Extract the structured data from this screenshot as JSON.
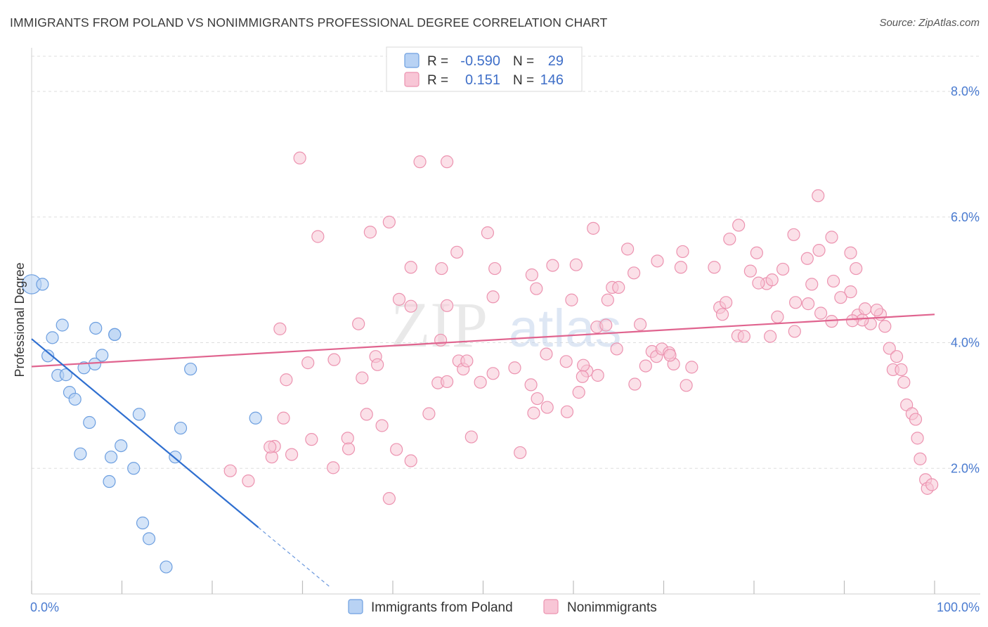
{
  "title": "IMMIGRANTS FROM POLAND VS NONIMMIGRANTS PROFESSIONAL DEGREE CORRELATION CHART",
  "source": "Source: ZipAtlas.com",
  "watermark": {
    "zip": "ZIP",
    "atlas": "atlas"
  },
  "colors": {
    "blue_fill": "#b8d2f4",
    "blue_stroke": "#6d9fe0",
    "blue_line": "#2f6fd0",
    "pink_fill": "#f8c6d6",
    "pink_stroke": "#ec93b0",
    "pink_line": "#e0648f",
    "grid": "#dddddd",
    "axis_text": "#4a7bd0"
  },
  "legend": {
    "rows": [
      {
        "r_label": "R =",
        "r_value": "-0.590",
        "n_label": "N =",
        "n_value": "29"
      },
      {
        "r_label": "R =",
        "r_value": "0.151",
        "n_label": "N =",
        "n_value": "146"
      }
    ]
  },
  "bottom_legend": [
    "Immigrants from Poland",
    "Nonimmigrants"
  ],
  "chart_data": {
    "type": "scatter",
    "title": "IMMIGRANTS FROM POLAND VS NONIMMIGRANTS PROFESSIONAL DEGREE CORRELATION CHART",
    "xlabel": "",
    "ylabel": "Professional Degree",
    "xlim": [
      0,
      100
    ],
    "ylim": [
      0,
      8.0
    ],
    "x_tick_labels": [
      "0.0%",
      "100.0%"
    ],
    "y_ticks": [
      2.0,
      4.0,
      6.0,
      8.0
    ],
    "y_tick_labels": [
      "2.0%",
      "4.0%",
      "6.0%",
      "8.0%"
    ],
    "grid": true,
    "legend_position": "top-center",
    "series": [
      {
        "name": "Immigrants from Poland",
        "r": -0.59,
        "n": 29,
        "trend": {
          "x0": 0,
          "y0": 4.06,
          "x1": 25.1,
          "y1": 1.06,
          "dash_to_x": 33.0
        },
        "points": [
          [
            0.0,
            4.93,
            1.6
          ],
          [
            1.2,
            4.93,
            1.0
          ],
          [
            2.3,
            4.08,
            1.0
          ],
          [
            1.8,
            3.79,
            1.0
          ],
          [
            3.4,
            4.28,
            1.0
          ],
          [
            2.9,
            3.48,
            1.0
          ],
          [
            3.8,
            3.49,
            1.0
          ],
          [
            4.2,
            3.21,
            1.0
          ],
          [
            4.8,
            3.1,
            1.0
          ],
          [
            5.8,
            3.6,
            1.0
          ],
          [
            7.1,
            4.23,
            1.0
          ],
          [
            7.8,
            3.8,
            1.0
          ],
          [
            9.2,
            4.13,
            1.0
          ],
          [
            7.0,
            3.66,
            1.0
          ],
          [
            6.4,
            2.73,
            1.0
          ],
          [
            5.4,
            2.23,
            1.0
          ],
          [
            8.6,
            1.79,
            1.0
          ],
          [
            8.8,
            2.18,
            1.0
          ],
          [
            9.9,
            2.36,
            1.0
          ],
          [
            11.3,
            2.0,
            1.0
          ],
          [
            11.9,
            2.86,
            1.0
          ],
          [
            12.3,
            1.13,
            1.0
          ],
          [
            13.0,
            0.88,
            1.0
          ],
          [
            14.9,
            0.43,
            1.0
          ],
          [
            15.9,
            2.18,
            1.0
          ],
          [
            16.5,
            2.64,
            1.0
          ],
          [
            17.6,
            3.58,
            1.0
          ],
          [
            24.8,
            2.8,
            1.0
          ],
          [
            9.2,
            4.13,
            1.0
          ]
        ]
      },
      {
        "name": "Nonimmigrants",
        "r": 0.151,
        "n": 146,
        "trend": {
          "x0": 0,
          "y0": 3.62,
          "x1": 100,
          "y1": 4.45
        },
        "points": [
          [
            29.7,
            6.94
          ],
          [
            43.0,
            6.88
          ],
          [
            46.0,
            6.88
          ],
          [
            31.7,
            5.69
          ],
          [
            37.5,
            5.76
          ],
          [
            39.6,
            5.92
          ],
          [
            42.0,
            5.2
          ],
          [
            45.4,
            5.18
          ],
          [
            47.1,
            5.44
          ],
          [
            50.5,
            5.75
          ],
          [
            51.3,
            5.18
          ],
          [
            55.4,
            5.08
          ],
          [
            57.7,
            5.23
          ],
          [
            60.3,
            5.24
          ],
          [
            62.2,
            5.82
          ],
          [
            66.0,
            5.49
          ],
          [
            66.7,
            5.11
          ],
          [
            69.3,
            5.3
          ],
          [
            72.1,
            5.45
          ],
          [
            71.9,
            5.2
          ],
          [
            75.6,
            5.2
          ],
          [
            78.3,
            5.87
          ],
          [
            80.3,
            5.43
          ],
          [
            84.4,
            5.72
          ],
          [
            87.2,
            5.47
          ],
          [
            88.6,
            5.68
          ],
          [
            90.7,
            5.43
          ],
          [
            87.1,
            6.34
          ],
          [
            91.3,
            5.18
          ],
          [
            77.3,
            5.65
          ],
          [
            85.9,
            5.34
          ],
          [
            83.2,
            5.17
          ],
          [
            79.6,
            5.14
          ],
          [
            81.4,
            4.94
          ],
          [
            82.0,
            5.0
          ],
          [
            86.4,
            4.93
          ],
          [
            88.8,
            4.98
          ],
          [
            90.7,
            4.81
          ],
          [
            86.0,
            4.62
          ],
          [
            84.6,
            4.64
          ],
          [
            89.6,
            4.72
          ],
          [
            91.5,
            4.44
          ],
          [
            92.3,
            4.54
          ],
          [
            92.9,
            4.3
          ],
          [
            94.0,
            4.45
          ],
          [
            92.0,
            4.36
          ],
          [
            93.6,
            4.52
          ],
          [
            90.9,
            4.35
          ],
          [
            94.5,
            4.26
          ],
          [
            95.0,
            3.91
          ],
          [
            95.8,
            3.78
          ],
          [
            95.4,
            3.57
          ],
          [
            96.3,
            3.57
          ],
          [
            96.6,
            3.37
          ],
          [
            96.9,
            3.01
          ],
          [
            97.5,
            2.87
          ],
          [
            97.9,
            2.78
          ],
          [
            98.1,
            2.48
          ],
          [
            98.4,
            2.15
          ],
          [
            99.0,
            1.82
          ],
          [
            99.2,
            1.68
          ],
          [
            99.7,
            1.74
          ],
          [
            63.8,
            4.68
          ],
          [
            64.3,
            4.88
          ],
          [
            65.0,
            4.88
          ],
          [
            59.8,
            4.68
          ],
          [
            55.9,
            4.86
          ],
          [
            51.1,
            4.73
          ],
          [
            46.0,
            4.59
          ],
          [
            42.0,
            4.58
          ],
          [
            40.7,
            4.69
          ],
          [
            36.2,
            4.3
          ],
          [
            27.5,
            4.22
          ],
          [
            28.2,
            3.41
          ],
          [
            30.6,
            3.68
          ],
          [
            33.5,
            3.73
          ],
          [
            36.6,
            3.44
          ],
          [
            38.1,
            3.78
          ],
          [
            38.3,
            3.65
          ],
          [
            45.0,
            3.36
          ],
          [
            45.3,
            4.04
          ],
          [
            47.3,
            3.71
          ],
          [
            47.8,
            3.58
          ],
          [
            49.7,
            3.37
          ],
          [
            51.1,
            3.51
          ],
          [
            53.5,
            3.6
          ],
          [
            57.0,
            3.82
          ],
          [
            59.2,
            3.7
          ],
          [
            61.5,
            3.55
          ],
          [
            61.1,
            3.64
          ],
          [
            61.0,
            3.46
          ],
          [
            62.6,
            4.25
          ],
          [
            63.6,
            4.28
          ],
          [
            67.4,
            4.29
          ],
          [
            68.0,
            3.63
          ],
          [
            68.7,
            3.86
          ],
          [
            69.2,
            3.78
          ],
          [
            69.8,
            3.9
          ],
          [
            70.6,
            3.84
          ],
          [
            71.1,
            3.66
          ],
          [
            73.1,
            3.61
          ],
          [
            76.2,
            4.56
          ],
          [
            76.9,
            4.64
          ],
          [
            76.5,
            4.45
          ],
          [
            78.2,
            4.11
          ],
          [
            78.9,
            4.1
          ],
          [
            81.8,
            4.1
          ],
          [
            84.5,
            4.18
          ],
          [
            87.4,
            4.47
          ],
          [
            88.6,
            4.34
          ],
          [
            27.9,
            2.8
          ],
          [
            31.0,
            2.46
          ],
          [
            35.0,
            2.48
          ],
          [
            37.1,
            2.86
          ],
          [
            38.8,
            2.68
          ],
          [
            40.4,
            2.3
          ],
          [
            42.0,
            2.12
          ],
          [
            44.0,
            2.87
          ],
          [
            46.0,
            3.38
          ],
          [
            54.1,
            2.25
          ],
          [
            55.6,
            2.88
          ],
          [
            57.1,
            2.97
          ],
          [
            59.3,
            2.9
          ],
          [
            60.6,
            3.21
          ],
          [
            56.0,
            3.11
          ],
          [
            66.8,
            3.34
          ],
          [
            72.5,
            3.32
          ],
          [
            48.7,
            2.5
          ],
          [
            26.6,
            2.18
          ],
          [
            26.9,
            2.35
          ],
          [
            28.8,
            2.22
          ],
          [
            26.4,
            2.34
          ],
          [
            22.0,
            1.96
          ],
          [
            24.0,
            1.8
          ],
          [
            33.4,
            2.01
          ],
          [
            35.1,
            2.31
          ],
          [
            39.6,
            1.52
          ],
          [
            55.3,
            3.33
          ],
          [
            64.8,
            3.9
          ],
          [
            48.2,
            3.71
          ],
          [
            62.7,
            3.48
          ],
          [
            70.7,
            3.8
          ],
          [
            80.5,
            4.95
          ],
          [
            82.6,
            4.41
          ]
        ]
      }
    ]
  }
}
